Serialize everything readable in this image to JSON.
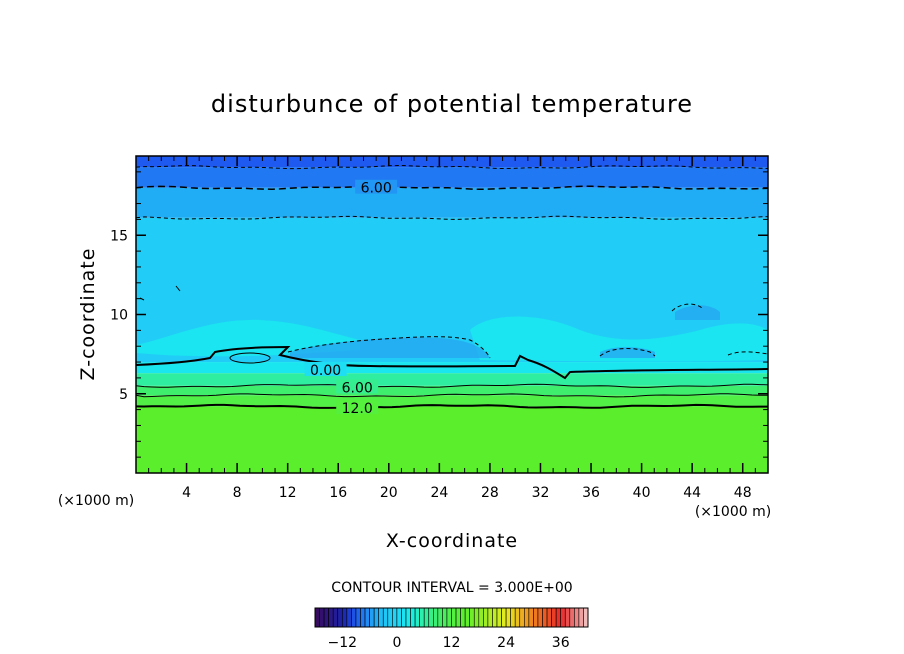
{
  "chart_data": {
    "type": "heatmap",
    "title": "disturbunce of potential temperature",
    "xlabel": "X-coordinate",
    "ylabel": "Z-coordinate",
    "x_unit_left": "(×1000 m)",
    "x_unit_right": "(×1000 m)",
    "xlim": [
      0,
      50
    ],
    "ylim": [
      0,
      20
    ],
    "x_ticks": [
      4,
      8,
      12,
      16,
      20,
      24,
      28,
      32,
      36,
      40,
      44,
      48
    ],
    "y_ticks": [
      5,
      10,
      15
    ],
    "contour_interval_text": "CONTOUR INTERVAL = 3.000E+00",
    "contour_interval": 3.0,
    "contour_labels": [
      {
        "text": "6.00",
        "x": 19,
        "z": 18.0,
        "style": "dashed"
      },
      {
        "text": "0.00",
        "x": 15,
        "z": 6.5,
        "style": "solid"
      },
      {
        "text": "6.00",
        "x": 17.5,
        "z": 5.4,
        "style": "solid"
      },
      {
        "text": "12.0",
        "x": 17.5,
        "z": 4.1,
        "style": "solid"
      }
    ],
    "field_bands": [
      {
        "z_min": 0,
        "z_max": 4.2,
        "value": 15
      },
      {
        "z_min": 4.2,
        "z_max": 4.9,
        "value": 12
      },
      {
        "z_min": 4.9,
        "z_max": 5.5,
        "value": 9
      },
      {
        "z_min": 5.5,
        "z_max": 6.3,
        "value": 6
      },
      {
        "z_min": 6.3,
        "z_max": 7.0,
        "value": 2
      },
      {
        "z_min": 7.0,
        "z_max": 16.1,
        "value": -1.5
      },
      {
        "z_min": 16.1,
        "z_max": 18.0,
        "value": -4.5
      },
      {
        "z_min": 18.0,
        "z_max": 19.3,
        "value": -7.5
      },
      {
        "z_min": 19.3,
        "z_max": 20.0,
        "value": -9
      }
    ],
    "colorbar": {
      "min": -18,
      "max": 42,
      "ticks": [
        -12,
        0,
        12,
        24,
        36
      ],
      "tick_labels": [
        "−12",
        "0",
        "12",
        "24",
        "36"
      ]
    }
  }
}
